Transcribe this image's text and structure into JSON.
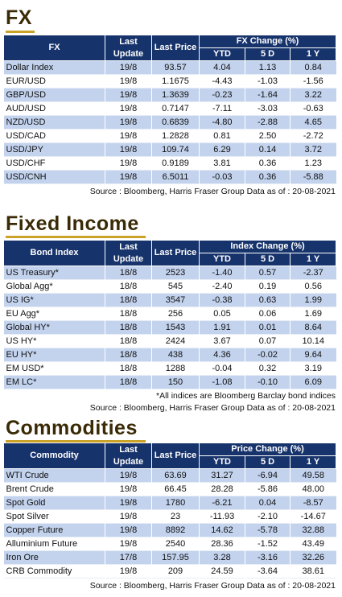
{
  "fx": {
    "title": "FX",
    "header": {
      "name": "FX",
      "last_update": "Last Update",
      "last_price": "Last Price",
      "group": "FX Change (%)",
      "ytd": "YTD",
      "d5": "5 D",
      "y1": "1 Y"
    },
    "rows": [
      {
        "name": "Dollar Index",
        "update": "19/8",
        "price": "93.57",
        "ytd": "4.04",
        "d5": "1.13",
        "y1": "0.84"
      },
      {
        "name": "EUR/USD",
        "update": "19/8",
        "price": "1.1675",
        "ytd": "-4.43",
        "d5": "-1.03",
        "y1": "-1.56"
      },
      {
        "name": "GBP/USD",
        "update": "19/8",
        "price": "1.3639",
        "ytd": "-0.23",
        "d5": "-1.64",
        "y1": "3.22"
      },
      {
        "name": "AUD/USD",
        "update": "19/8",
        "price": "0.7147",
        "ytd": "-7.11",
        "d5": "-3.03",
        "y1": "-0.63"
      },
      {
        "name": "NZD/USD",
        "update": "19/8",
        "price": "0.6839",
        "ytd": "-4.80",
        "d5": "-2.88",
        "y1": "4.65"
      },
      {
        "name": "USD/CAD",
        "update": "19/8",
        "price": "1.2828",
        "ytd": "0.81",
        "d5": "2.50",
        "y1": "-2.72"
      },
      {
        "name": "USD/JPY",
        "update": "19/8",
        "price": "109.74",
        "ytd": "6.29",
        "d5": "0.14",
        "y1": "3.72"
      },
      {
        "name": "USD/CHF",
        "update": "19/8",
        "price": "0.9189",
        "ytd": "3.81",
        "d5": "0.36",
        "y1": "1.23"
      },
      {
        "name": "USD/CNH",
        "update": "19/8",
        "price": "6.5011",
        "ytd": "-0.03",
        "d5": "0.36",
        "y1": "-5.88"
      }
    ],
    "source": "Source : Bloomberg, Harris Fraser Group Data as of : 20-08-2021"
  },
  "fixed_income": {
    "title": "Fixed Income",
    "header": {
      "name": "Bond Index",
      "last_update": "Last Update",
      "last_price": "Last Price",
      "group": "Index Change (%)",
      "ytd": "YTD",
      "d5": "5 D",
      "y1": "1 Y"
    },
    "rows": [
      {
        "name": "US Treasury*",
        "update": "18/8",
        "price": "2523",
        "ytd": "-1.40",
        "d5": "0.57",
        "y1": "-2.37"
      },
      {
        "name": "Global Agg*",
        "update": "18/8",
        "price": "545",
        "ytd": "-2.40",
        "d5": "0.19",
        "y1": "0.56"
      },
      {
        "name": "US IG*",
        "update": "18/8",
        "price": "3547",
        "ytd": "-0.38",
        "d5": "0.63",
        "y1": "1.99"
      },
      {
        "name": "EU Agg*",
        "update": "18/8",
        "price": "256",
        "ytd": "0.05",
        "d5": "0.06",
        "y1": "1.69"
      },
      {
        "name": "Global HY*",
        "update": "18/8",
        "price": "1543",
        "ytd": "1.91",
        "d5": "0.01",
        "y1": "8.64"
      },
      {
        "name": "US HY*",
        "update": "18/8",
        "price": "2424",
        "ytd": "3.67",
        "d5": "0.07",
        "y1": "10.14"
      },
      {
        "name": "EU HY*",
        "update": "18/8",
        "price": "438",
        "ytd": "4.36",
        "d5": "-0.02",
        "y1": "9.64"
      },
      {
        "name": "EM USD*",
        "update": "18/8",
        "price": "1288",
        "ytd": "-0.04",
        "d5": "0.32",
        "y1": "3.19"
      },
      {
        "name": "EM LC*",
        "update": "18/8",
        "price": "150",
        "ytd": "-1.08",
        "d5": "-0.10",
        "y1": "6.09"
      }
    ],
    "footnote": "*All indices are Bloomberg Barclay bond indices",
    "source": "Source : Bloomberg, Harris Fraser Group Data as of : 20-08-2021"
  },
  "commodities": {
    "title": "Commodities",
    "header": {
      "name": "Commodity",
      "last_update": "Last Update",
      "last_price": "Last Price",
      "group": "Price Change (%)",
      "ytd": "YTD",
      "d5": "5 D",
      "y1": "1 Y"
    },
    "rows": [
      {
        "name": "WTI Crude",
        "update": "19/8",
        "price": "63.69",
        "ytd": "31.27",
        "d5": "-6.94",
        "y1": "49.58"
      },
      {
        "name": "Brent Crude",
        "update": "19/8",
        "price": "66.45",
        "ytd": "28.28",
        "d5": "-5.86",
        "y1": "48.00"
      },
      {
        "name": "Spot Gold",
        "update": "19/8",
        "price": "1780",
        "ytd": "-6.21",
        "d5": "0.04",
        "y1": "-8.57"
      },
      {
        "name": "Spot Silver",
        "update": "19/8",
        "price": "23",
        "ytd": "-11.93",
        "d5": "-2.10",
        "y1": "-14.67"
      },
      {
        "name": "Copper Future",
        "update": "19/8",
        "price": "8892",
        "ytd": "14.62",
        "d5": "-5.78",
        "y1": "32.88"
      },
      {
        "name": "Alluminium Future",
        "update": "19/8",
        "price": "2540",
        "ytd": "28.36",
        "d5": "-1.52",
        "y1": "43.49"
      },
      {
        "name": "Iron Ore",
        "update": "17/8",
        "price": "157.95",
        "ytd": "3.28",
        "d5": "-3.16",
        "y1": "32.26"
      },
      {
        "name": "CRB Commodity",
        "update": "19/8",
        "price": "209",
        "ytd": "24.59",
        "d5": "-3.64",
        "y1": "38.61"
      }
    ],
    "source": "Source : Bloomberg, Harris Fraser Group Data as of : 20-08-2021"
  },
  "colors": {
    "header_bg": "#17336b",
    "row_alt": "#c3d3ee",
    "title_text": "#3a2a06",
    "title_underline": "#c9a227"
  }
}
